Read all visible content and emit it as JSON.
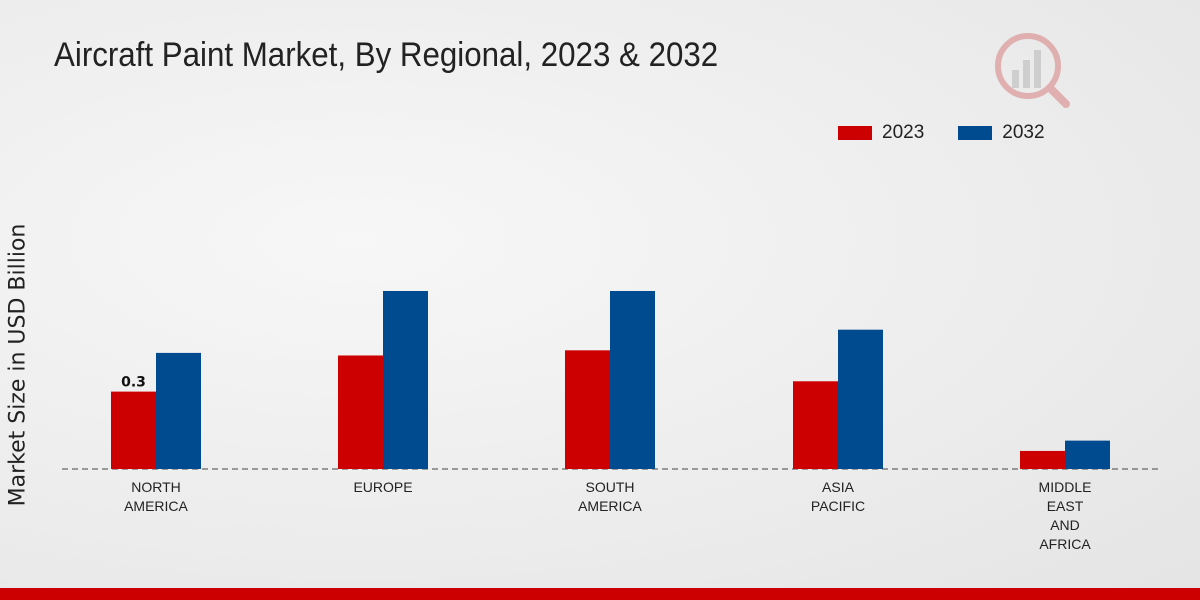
{
  "chart_data": {
    "type": "bar",
    "title": "Aircraft Paint Market, By Regional, 2023 & 2032",
    "xlabel": "",
    "ylabel": "Market Size in USD Billion",
    "categories": [
      [
        "NORTH",
        "AMERICA"
      ],
      [
        "EUROPE"
      ],
      [
        "SOUTH",
        "AMERICA"
      ],
      [
        "ASIA",
        "PACIFIC"
      ],
      [
        "MIDDLE",
        "EAST",
        "AND",
        "AFRICA"
      ]
    ],
    "series": [
      {
        "name": "2023",
        "color": "#cc0000",
        "values": [
          0.3,
          0.44,
          0.46,
          0.34,
          0.07
        ]
      },
      {
        "name": "2032",
        "color": "#004a8f",
        "values": [
          0.45,
          0.69,
          0.69,
          0.54,
          0.11
        ]
      }
    ],
    "data_labels": [
      {
        "series": 0,
        "index": 0,
        "text": "0.3"
      }
    ],
    "ylim": [
      0,
      1.0
    ],
    "grid": false,
    "legend": "top-right"
  }
}
